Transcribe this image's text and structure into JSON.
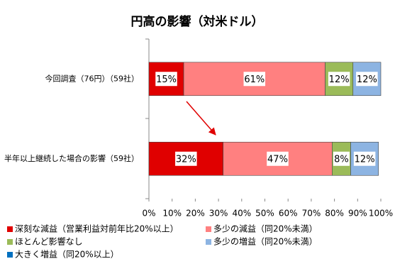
{
  "chart_data": {
    "type": "stacked_barh",
    "title": "円高の影響（対米ドル）",
    "categories": [
      "今回調査（76円）（59社）",
      "半年以上継続した場合の影響（59社）"
    ],
    "series": [
      {
        "name": "深刻な減益（営業利益対前年比20%以上）",
        "color": "#e00000",
        "values": [
          15,
          32
        ],
        "value_labels": [
          "15%",
          "32%"
        ]
      },
      {
        "name": "多少の減益（同20%未満）",
        "color": "#ff8080",
        "values": [
          61,
          47
        ],
        "value_labels": [
          "61%",
          "47%"
        ]
      },
      {
        "name": "ほとんど影響なし",
        "color": "#9bbb59",
        "values": [
          12,
          8
        ],
        "value_labels": [
          "12%",
          "8%"
        ]
      },
      {
        "name": "多少の増益（同20%未満）",
        "color": "#8db4e2",
        "values": [
          12,
          12
        ],
        "value_labels": [
          "12%",
          "12%"
        ]
      },
      {
        "name": "大きく増益（同20%以上）",
        "color": "#0070c0",
        "values": [
          0,
          0
        ]
      }
    ],
    "xlim": [
      0,
      100
    ],
    "xticks": [
      {
        "value": 0,
        "label": "0%"
      },
      {
        "value": 10,
        "label": "10%"
      },
      {
        "value": 20,
        "label": "20%"
      },
      {
        "value": 30,
        "label": "30%"
      },
      {
        "value": 40,
        "label": "40%"
      },
      {
        "value": 50,
        "label": "50%"
      },
      {
        "value": 60,
        "label": "60%"
      },
      {
        "value": 70,
        "label": "70%"
      },
      {
        "value": 80,
        "label": "80%"
      },
      {
        "value": 90,
        "label": "90%"
      },
      {
        "value": 100,
        "label": "100%"
      }
    ],
    "legend": "bottom"
  }
}
